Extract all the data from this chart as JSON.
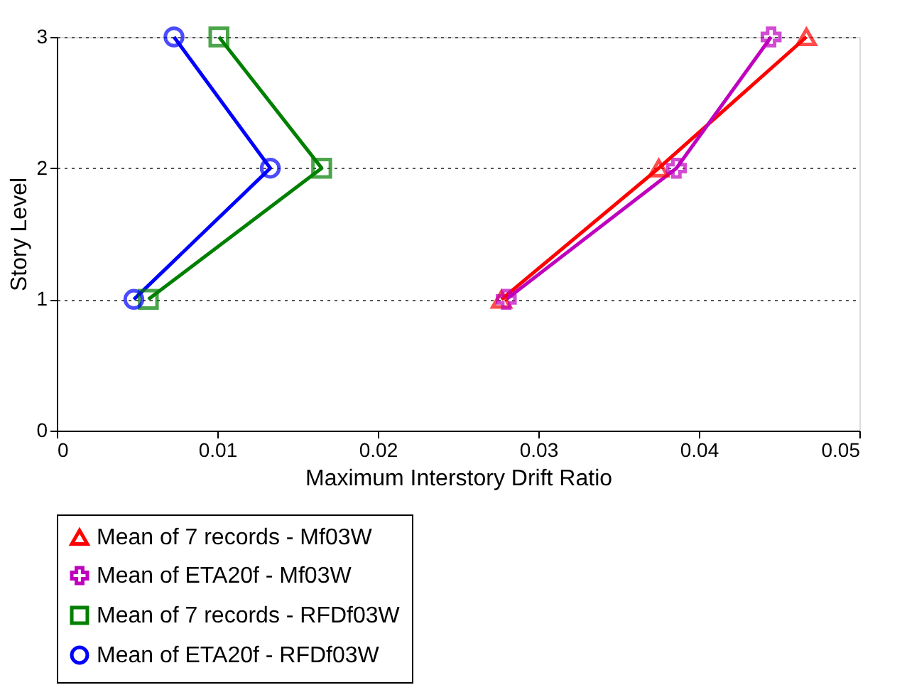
{
  "chart_data": {
    "type": "line",
    "xlabel": "Maximum Interstory Drift Ratio",
    "ylabel": "Story Level",
    "xlim": [
      0,
      0.05
    ],
    "xticks": [
      0,
      0.01,
      0.02,
      0.03,
      0.04,
      0.05
    ],
    "ylim": [
      0,
      3
    ],
    "yticks": [
      0,
      1,
      2,
      3
    ],
    "grid": "y",
    "legend": "bottom",
    "line_style": "solid",
    "series": [
      {
        "name": "Mean of 7 records - Mf03W",
        "color": "#ff0000",
        "marker": "triangle",
        "x": [
          0.0277,
          0.0375,
          0.0467
        ],
        "values": [
          1,
          2,
          3
        ]
      },
      {
        "name": "Mean of ETA20f - Mf03W",
        "color": "#bf00bf",
        "marker": "cross",
        "x": [
          0.028,
          0.0386,
          0.0445
        ],
        "values": [
          1,
          2,
          3
        ]
      },
      {
        "name": "Mean of 7 records - RFDf03W",
        "color": "#008000",
        "marker": "square",
        "x": [
          0.0057,
          0.0165,
          0.0101
        ],
        "values": [
          1,
          2,
          3
        ]
      },
      {
        "name": "Mean of ETA20f - RFDf03W",
        "color": "#0000ff",
        "marker": "circle",
        "x": [
          0.0048,
          0.0133,
          0.0073
        ],
        "values": [
          1,
          2,
          3
        ]
      }
    ]
  }
}
